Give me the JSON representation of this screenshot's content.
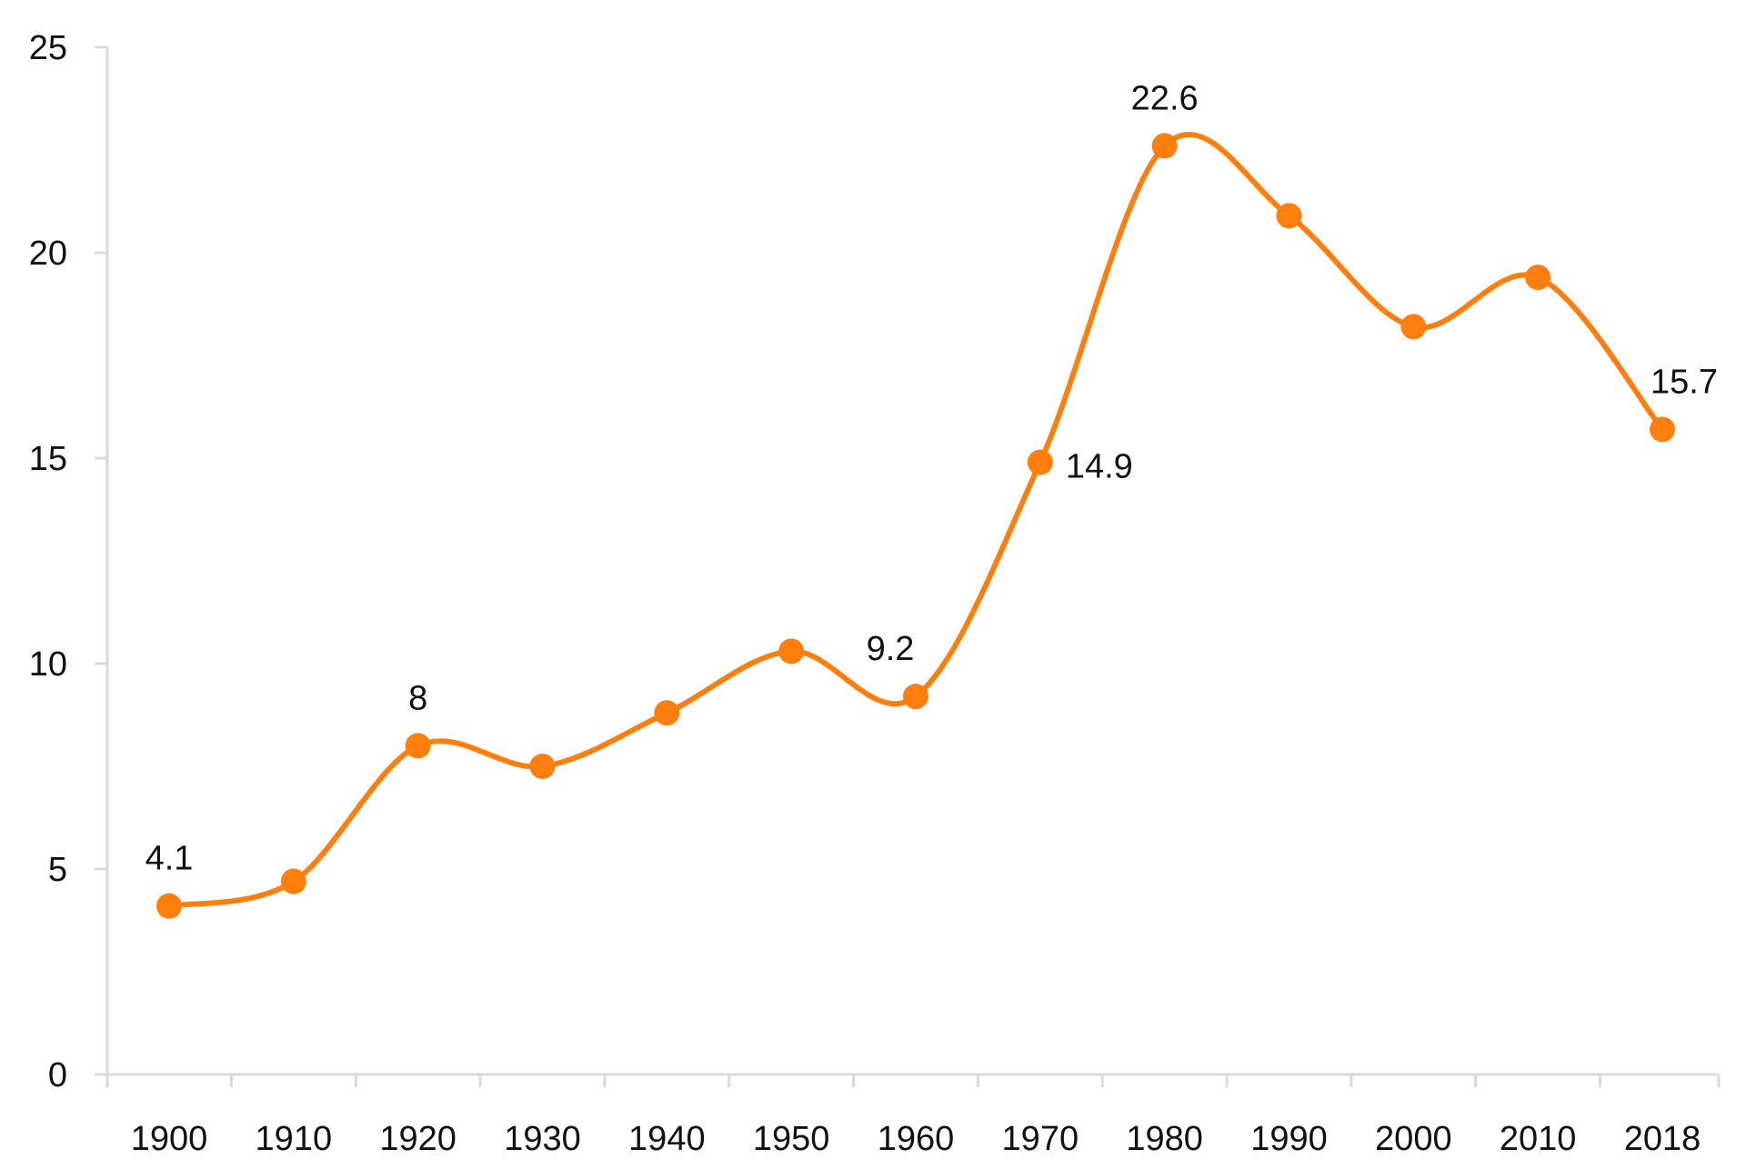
{
  "chart_data": {
    "type": "line",
    "smooth": true,
    "title": "",
    "xlabel": "",
    "ylabel": "",
    "x": [
      "1900",
      "1910",
      "1920",
      "1930",
      "1940",
      "1950",
      "1960",
      "1970",
      "1980",
      "1990",
      "2000",
      "2010",
      "2018"
    ],
    "series": [
      {
        "values": [
          4.1,
          4.7,
          8.0,
          7.5,
          8.8,
          10.3,
          9.2,
          14.9,
          22.6,
          20.9,
          18.2,
          19.4,
          15.7
        ]
      }
    ],
    "ylim": [
      0,
      25
    ],
    "yticks": [
      "0",
      "5",
      "10",
      "15",
      "20",
      "25"
    ],
    "grid": false,
    "legend": "none",
    "data_labels": [
      {
        "index": 0,
        "text": "4.1",
        "position": "above"
      },
      {
        "index": 2,
        "text": "8",
        "position": "above"
      },
      {
        "index": 6,
        "text": "9.2",
        "position": "above-left"
      },
      {
        "index": 7,
        "text": "14.9",
        "position": "right"
      },
      {
        "index": 8,
        "text": "22.6",
        "position": "above"
      },
      {
        "index": 12,
        "text": "15.7",
        "position": "above-right"
      }
    ],
    "colors": {
      "line": "#FF7F0E",
      "marker": "#FF7F0E",
      "axis": "#D9D9D9",
      "text": "#111111"
    }
  }
}
